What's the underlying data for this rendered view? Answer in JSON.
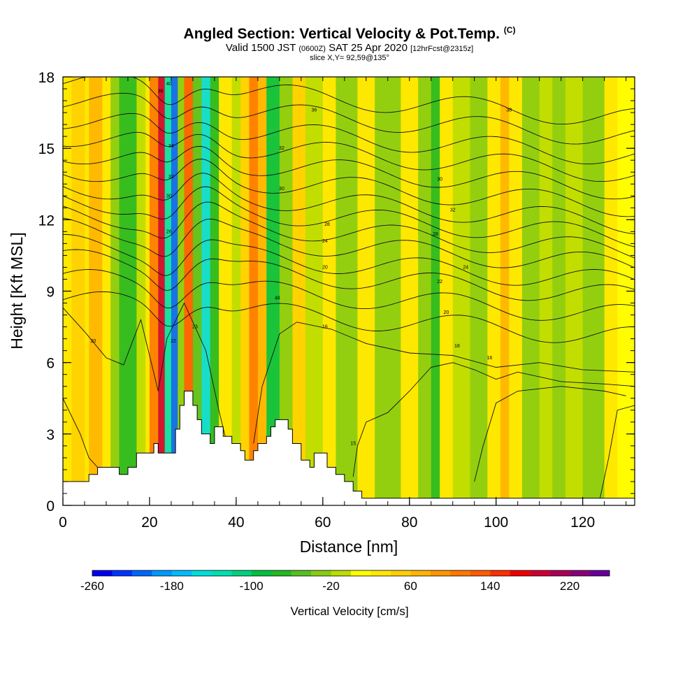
{
  "header": {
    "title_main": "Angled Section: Vertical Velocity & Pot.Temp.",
    "title_tag": "(C)",
    "valid_a": "Valid 1500 JST",
    "valid_b": "(0600Z)",
    "valid_c": "SAT 25 Apr 2020",
    "valid_d": "[12hrFcst@2315z]",
    "slice": "slice X,Y= 92,59@135°"
  },
  "chart_data": {
    "type": "heatmap",
    "xlabel": "Distance [nm]",
    "ylabel": "Height [Kft MSL]",
    "xlim": [
      0,
      132
    ],
    "ylim": [
      0,
      18
    ],
    "x_ticks": [
      "0",
      "20",
      "40",
      "60",
      "80",
      "100",
      "120"
    ],
    "y_ticks": [
      "0",
      "3",
      "6",
      "9",
      "12",
      "15",
      "18"
    ],
    "colorbar": {
      "label": "Vertical Velocity [cm/s]",
      "min": -260,
      "max": 260,
      "step": 20,
      "tick_labels": [
        "-260",
        "-180",
        "-100",
        "-20",
        "60",
        "140",
        "220"
      ],
      "colors": [
        "#0000ee",
        "#0033ff",
        "#0066ff",
        "#0099ff",
        "#00bbff",
        "#00dddd",
        "#00e0b0",
        "#00d080",
        "#00c040",
        "#22b822",
        "#55c020",
        "#88cc11",
        "#bbdd00",
        "#ffff00",
        "#ffe800",
        "#ffd000",
        "#ffb400",
        "#ff9600",
        "#ff7800",
        "#ff5a00",
        "#ff3000",
        "#ee0000",
        "#cc0033",
        "#aa0055",
        "#880077",
        "#660099"
      ]
    },
    "terrain": [
      [
        0,
        1
      ],
      [
        6,
        1
      ],
      [
        6,
        1.3
      ],
      [
        8,
        1.3
      ],
      [
        8,
        1.6
      ],
      [
        13,
        1.6
      ],
      [
        13,
        1.3
      ],
      [
        15,
        1.3
      ],
      [
        15,
        1.6
      ],
      [
        17,
        1.6
      ],
      [
        17,
        2.2
      ],
      [
        21,
        2.2
      ],
      [
        21,
        2.6
      ],
      [
        22,
        2.6
      ],
      [
        22,
        2.2
      ],
      [
        26,
        2.2
      ],
      [
        26,
        3.2
      ],
      [
        27,
        3.2
      ],
      [
        27,
        4.2
      ],
      [
        28,
        4.2
      ],
      [
        28,
        4.8
      ],
      [
        30,
        4.8
      ],
      [
        30,
        4.2
      ],
      [
        31,
        4.2
      ],
      [
        31,
        3.6
      ],
      [
        32,
        3.6
      ],
      [
        32,
        3.0
      ],
      [
        34,
        3.0
      ],
      [
        34,
        2.6
      ],
      [
        35,
        2.6
      ],
      [
        35,
        3.3
      ],
      [
        37,
        3.3
      ],
      [
        37,
        2.9
      ],
      [
        39,
        2.9
      ],
      [
        39,
        2.6
      ],
      [
        41,
        2.6
      ],
      [
        41,
        2.3
      ],
      [
        42,
        2.3
      ],
      [
        42,
        1.9
      ],
      [
        44,
        1.9
      ],
      [
        44,
        2.3
      ],
      [
        45,
        2.3
      ],
      [
        45,
        2.6
      ],
      [
        47,
        2.6
      ],
      [
        47,
        2.9
      ],
      [
        48,
        2.9
      ],
      [
        48,
        3.3
      ],
      [
        49,
        3.3
      ],
      [
        49,
        3.6
      ],
      [
        52,
        3.6
      ],
      [
        52,
        3.2
      ],
      [
        53,
        3.2
      ],
      [
        53,
        2.6
      ],
      [
        55,
        2.6
      ],
      [
        55,
        1.9
      ],
      [
        57,
        1.9
      ],
      [
        57,
        1.6
      ],
      [
        58,
        1.6
      ],
      [
        58,
        2.2
      ],
      [
        61,
        2.2
      ],
      [
        61,
        1.6
      ],
      [
        63,
        1.6
      ],
      [
        63,
        1.3
      ],
      [
        65,
        1.3
      ],
      [
        65,
        1.0
      ],
      [
        67,
        1.0
      ],
      [
        67,
        0.6
      ],
      [
        69,
        0.6
      ],
      [
        69,
        0.3
      ],
      [
        132,
        0.3
      ]
    ],
    "shading": [
      {
        "x": 2,
        "w": 3,
        "v": 40
      },
      {
        "x": 6,
        "w": 3,
        "v": 60
      },
      {
        "x": 11,
        "w": 2,
        "v": -40
      },
      {
        "x": 13,
        "w": 4,
        "v": -80
      },
      {
        "x": 17,
        "w": 2,
        "v": -20
      },
      {
        "x": 20,
        "w": 2,
        "v": 100
      },
      {
        "x": 22,
        "w": 1.5,
        "v": 180
      },
      {
        "x": 23.5,
        "w": 1.5,
        "v": -140
      },
      {
        "x": 25,
        "w": 1.5,
        "v": -220
      },
      {
        "x": 26.5,
        "w": 1.5,
        "v": -40
      },
      {
        "x": 28,
        "w": 2,
        "v": 120
      },
      {
        "x": 30,
        "w": 2,
        "v": -60
      },
      {
        "x": 32,
        "w": 2,
        "v": -160
      },
      {
        "x": 34,
        "w": 2,
        "v": -80
      },
      {
        "x": 36,
        "w": 3,
        "v": 20
      },
      {
        "x": 39,
        "w": 2,
        "v": -20
      },
      {
        "x": 41,
        "w": 2,
        "v": 40
      },
      {
        "x": 43,
        "w": 2,
        "v": 100
      },
      {
        "x": 45,
        "w": 2,
        "v": 60
      },
      {
        "x": 47,
        "w": 3,
        "v": -100
      },
      {
        "x": 50,
        "w": 3,
        "v": -40
      },
      {
        "x": 53,
        "w": 3,
        "v": 40
      },
      {
        "x": 56,
        "w": 4,
        "v": -20
      },
      {
        "x": 60,
        "w": 3,
        "v": 20
      },
      {
        "x": 63,
        "w": 5,
        "v": -40
      },
      {
        "x": 68,
        "w": 4,
        "v": 20
      },
      {
        "x": 72,
        "w": 6,
        "v": -40
      },
      {
        "x": 78,
        "w": 4,
        "v": 20
      },
      {
        "x": 82,
        "w": 3,
        "v": -40
      },
      {
        "x": 85,
        "w": 2,
        "v": -80
      },
      {
        "x": 87,
        "w": 3,
        "v": 20
      },
      {
        "x": 90,
        "w": 4,
        "v": -20
      },
      {
        "x": 94,
        "w": 4,
        "v": -40
      },
      {
        "x": 98,
        "w": 3,
        "v": 20
      },
      {
        "x": 101,
        "w": 2,
        "v": 60
      },
      {
        "x": 103,
        "w": 3,
        "v": 20
      },
      {
        "x": 106,
        "w": 4,
        "v": -40
      },
      {
        "x": 110,
        "w": 3,
        "v": -20
      },
      {
        "x": 113,
        "w": 3,
        "v": -40
      },
      {
        "x": 116,
        "w": 4,
        "v": -20
      },
      {
        "x": 120,
        "w": 5,
        "v": -40
      },
      {
        "x": 125,
        "w": 3,
        "v": 20
      },
      {
        "x": 128,
        "w": 4,
        "v": 0
      }
    ],
    "isentrope_levels_kft": [
      8.4,
      9.3,
      10.1,
      10.7,
      11.4,
      12.0,
      12.6,
      13.2,
      13.9,
      14.6,
      15.3,
      16.0,
      16.8,
      17.6
    ],
    "contour_labels": [
      {
        "x": 7,
        "y": 6.9,
        "text": "20"
      },
      {
        "x": 25.5,
        "y": 6.9,
        "text": "22"
      },
      {
        "x": 30.5,
        "y": 7.5,
        "text": "23"
      },
      {
        "x": 49.5,
        "y": 8.7,
        "text": "48"
      },
      {
        "x": 60.5,
        "y": 7.5,
        "text": "16"
      },
      {
        "x": 60.5,
        "y": 10.0,
        "text": "20"
      },
      {
        "x": 60.5,
        "y": 11.1,
        "text": "24"
      },
      {
        "x": 61,
        "y": 11.8,
        "text": "28"
      },
      {
        "x": 50.5,
        "y": 13.3,
        "text": "30"
      },
      {
        "x": 50.5,
        "y": 15.0,
        "text": "32"
      },
      {
        "x": 58,
        "y": 16.6,
        "text": "36"
      },
      {
        "x": 87,
        "y": 13.7,
        "text": "30"
      },
      {
        "x": 90,
        "y": 12.4,
        "text": "32"
      },
      {
        "x": 86,
        "y": 11.4,
        "text": "28"
      },
      {
        "x": 93,
        "y": 10.0,
        "text": "24"
      },
      {
        "x": 87,
        "y": 9.4,
        "text": "22"
      },
      {
        "x": 88.5,
        "y": 8.1,
        "text": "20"
      },
      {
        "x": 91,
        "y": 6.7,
        "text": "18"
      },
      {
        "x": 98.5,
        "y": 6.2,
        "text": "16"
      },
      {
        "x": 103,
        "y": 16.6,
        "text": "38"
      },
      {
        "x": 67,
        "y": 2.6,
        "text": "15"
      },
      {
        "x": 24.5,
        "y": 17.7,
        "text": "40"
      },
      {
        "x": 22.5,
        "y": 17.4,
        "text": "36"
      },
      {
        "x": 25,
        "y": 15.1,
        "text": "34"
      },
      {
        "x": 25,
        "y": 13.8,
        "text": "32"
      },
      {
        "x": 24.5,
        "y": 13.0,
        "text": "30"
      },
      {
        "x": 24.5,
        "y": 11.5,
        "text": "26"
      }
    ]
  }
}
